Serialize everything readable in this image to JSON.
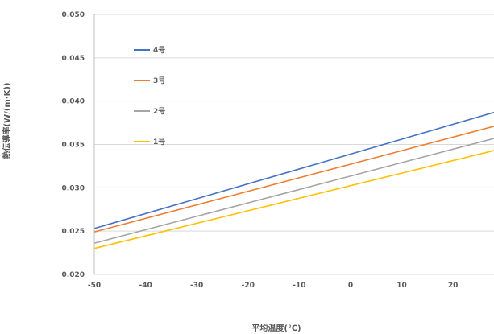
{
  "chart_data": {
    "type": "line",
    "xlabel": "平均温度(℃)",
    "ylabel": "熱伝導率(W/(m·K))",
    "xlim": [
      -50,
      28
    ],
    "ylim": [
      0.02,
      0.05
    ],
    "x_ticks": [
      "-50",
      "-40",
      "-30",
      "-20",
      "-10",
      "0",
      "10",
      "20"
    ],
    "y_ticks": [
      "0.020",
      "0.025",
      "0.030",
      "0.035",
      "0.040",
      "0.045",
      "0.050"
    ],
    "grid": "horizontal",
    "legend_position": "top-left",
    "series": [
      {
        "name": "4号",
        "color": "#4472C4",
        "x": [
          -50,
          28
        ],
        "y": [
          0.0253,
          0.0387
        ]
      },
      {
        "name": "3号",
        "color": "#ED7D31",
        "x": [
          -50,
          28
        ],
        "y": [
          0.0249,
          0.0371
        ]
      },
      {
        "name": "2号",
        "color": "#A5A5A5",
        "x": [
          -50,
          28
        ],
        "y": [
          0.0236,
          0.0357
        ]
      },
      {
        "name": "1号",
        "color": "#FFC000",
        "x": [
          -50,
          28
        ],
        "y": [
          0.023,
          0.0343
        ]
      }
    ]
  }
}
